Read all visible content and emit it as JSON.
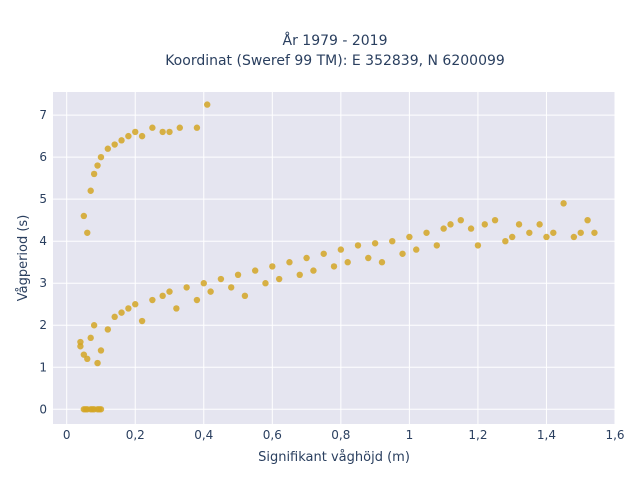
{
  "chart_data": {
    "type": "scatter",
    "title": "År 1979 - 2019",
    "subtitle": "Koordinat (Sweref 99 TM): E 352839, N 6200099",
    "xlabel": "Signifikant våghöjd (m)",
    "ylabel": "Vågperiod (s)",
    "xlim": [
      -0.04,
      1.6
    ],
    "ylim": [
      -0.35,
      7.55
    ],
    "xticks": [
      0,
      0.2,
      0.4,
      0.6,
      0.8,
      1,
      1.2,
      1.4,
      1.6
    ],
    "xtick_labels": [
      "0",
      "0,2",
      "0,4",
      "0,6",
      "0,8",
      "1",
      "1,2",
      "1,4",
      "1,6"
    ],
    "yticks": [
      0,
      1,
      2,
      3,
      4,
      5,
      6,
      7
    ],
    "ytick_labels": [
      "0",
      "1",
      "2",
      "3",
      "4",
      "5",
      "6",
      "7"
    ],
    "grid": true,
    "colors": {
      "marker": "#d4a625",
      "plot_bg": "#e5e5f0",
      "grid": "#ffffff",
      "text": "#2a3f5f"
    },
    "series": [
      {
        "points": [
          [
            0.05,
            0
          ],
          [
            0.06,
            0
          ],
          [
            0.07,
            0
          ],
          [
            0.08,
            0
          ],
          [
            0.09,
            0
          ],
          [
            0.1,
            0
          ],
          [
            0.055,
            0
          ],
          [
            0.075,
            0
          ],
          [
            0.095,
            0
          ],
          [
            0.04,
            1.6
          ],
          [
            0.04,
            1.5
          ],
          [
            0.05,
            1.3
          ],
          [
            0.06,
            1.2
          ],
          [
            0.07,
            1.7
          ],
          [
            0.08,
            2.0
          ],
          [
            0.09,
            1.1
          ],
          [
            0.1,
            1.4
          ],
          [
            0.12,
            1.9
          ],
          [
            0.14,
            2.2
          ],
          [
            0.16,
            2.3
          ],
          [
            0.18,
            2.4
          ],
          [
            0.2,
            2.5
          ],
          [
            0.22,
            2.1
          ],
          [
            0.25,
            2.6
          ],
          [
            0.28,
            2.7
          ],
          [
            0.3,
            2.8
          ],
          [
            0.32,
            2.4
          ],
          [
            0.35,
            2.9
          ],
          [
            0.38,
            2.6
          ],
          [
            0.4,
            3.0
          ],
          [
            0.42,
            2.8
          ],
          [
            0.45,
            3.1
          ],
          [
            0.48,
            2.9
          ],
          [
            0.5,
            3.2
          ],
          [
            0.52,
            2.7
          ],
          [
            0.55,
            3.3
          ],
          [
            0.58,
            3.0
          ],
          [
            0.6,
            3.4
          ],
          [
            0.62,
            3.1
          ],
          [
            0.65,
            3.5
          ],
          [
            0.68,
            3.2
          ],
          [
            0.7,
            3.6
          ],
          [
            0.72,
            3.3
          ],
          [
            0.75,
            3.7
          ],
          [
            0.78,
            3.4
          ],
          [
            0.8,
            3.8
          ],
          [
            0.82,
            3.5
          ],
          [
            0.85,
            3.9
          ],
          [
            0.88,
            3.6
          ],
          [
            0.9,
            3.95
          ],
          [
            0.92,
            3.5
          ],
          [
            0.95,
            4.0
          ],
          [
            0.98,
            3.7
          ],
          [
            1.0,
            4.1
          ],
          [
            1.02,
            3.8
          ],
          [
            1.05,
            4.2
          ],
          [
            1.08,
            3.9
          ],
          [
            1.1,
            4.3
          ],
          [
            1.12,
            4.4
          ],
          [
            1.15,
            4.5
          ],
          [
            1.18,
            4.3
          ],
          [
            1.2,
            3.9
          ],
          [
            1.22,
            4.4
          ],
          [
            1.25,
            4.5
          ],
          [
            1.28,
            4.0
          ],
          [
            1.3,
            4.1
          ],
          [
            1.32,
            4.4
          ],
          [
            1.35,
            4.2
          ],
          [
            1.38,
            4.4
          ],
          [
            1.4,
            4.1
          ],
          [
            1.42,
            4.2
          ],
          [
            1.45,
            4.9
          ],
          [
            1.48,
            4.1
          ],
          [
            1.5,
            4.2
          ],
          [
            1.52,
            4.5
          ],
          [
            1.54,
            4.2
          ],
          [
            0.05,
            4.6
          ],
          [
            0.06,
            4.2
          ],
          [
            0.07,
            5.2
          ],
          [
            0.08,
            5.6
          ],
          [
            0.09,
            5.8
          ],
          [
            0.1,
            6.0
          ],
          [
            0.12,
            6.2
          ],
          [
            0.14,
            6.3
          ],
          [
            0.16,
            6.4
          ],
          [
            0.18,
            6.5
          ],
          [
            0.2,
            6.6
          ],
          [
            0.22,
            6.5
          ],
          [
            0.25,
            6.7
          ],
          [
            0.28,
            6.6
          ],
          [
            0.3,
            6.6
          ],
          [
            0.33,
            6.7
          ],
          [
            0.38,
            6.7
          ],
          [
            0.41,
            7.25
          ]
        ]
      }
    ]
  }
}
